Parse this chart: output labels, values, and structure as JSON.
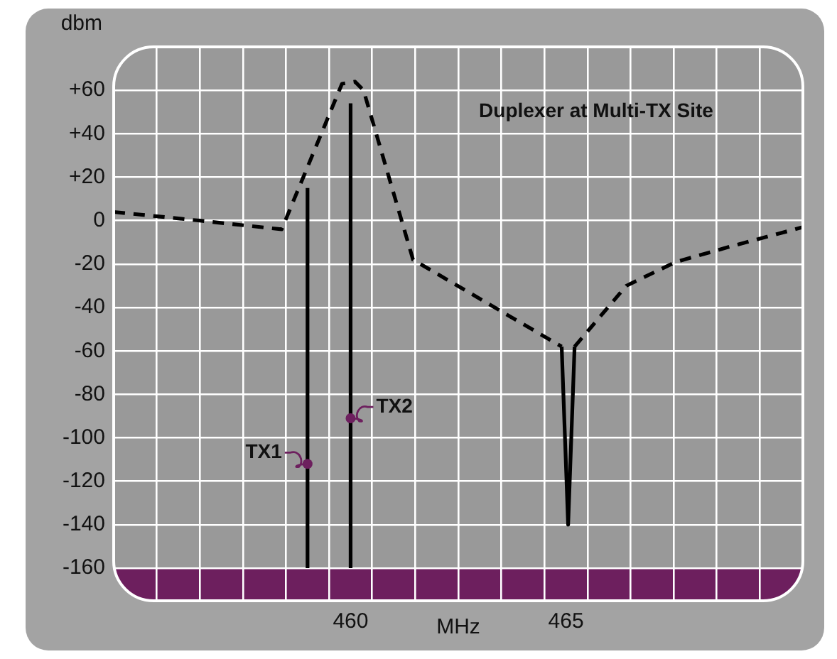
{
  "chart_data": {
    "type": "line",
    "title": "Duplexer at Multi-TX Site",
    "xlabel": "MHz",
    "ylabel": "dbm",
    "xlim": [
      454.5,
      470.5
    ],
    "ylim": [
      -175,
      80
    ],
    "xticks": [
      {
        "value": 455.5,
        "label": null
      },
      {
        "value": 456.5,
        "label": null
      },
      {
        "value": 457.5,
        "label": null
      },
      {
        "value": 458.5,
        "label": null
      },
      {
        "value": 459.5,
        "label": null
      },
      460,
      {
        "value": 460.5,
        "label": null
      },
      {
        "value": 461.5,
        "label": null
      },
      {
        "value": 462.5,
        "label": null
      },
      {
        "value": 463.5,
        "label": null
      },
      {
        "value": 464.5,
        "label": null
      },
      465,
      {
        "value": 465.5,
        "label": null
      },
      {
        "value": 466.5,
        "label": null
      },
      {
        "value": 467.5,
        "label": null
      },
      {
        "value": 468.5,
        "label": null
      },
      {
        "value": 469.5,
        "label": null
      }
    ],
    "yticks": [
      -160,
      -140,
      -120,
      -100,
      -80,
      -60,
      -40,
      -20,
      0,
      {
        "value": 20,
        "label": "+20"
      },
      {
        "value": 40,
        "label": "+40"
      },
      {
        "value": 60,
        "label": "+60"
      }
    ],
    "grid": true,
    "legend": false,
    "marker": "none",
    "series": [
      {
        "color": "#000000",
        "line_style": "dashed",
        "x": [
          454.5,
          456.5,
          458.4,
          459.8,
          460.1,
          460.3,
          461.45,
          464.9
        ],
        "values": [
          4,
          0,
          -4,
          63,
          64,
          60,
          -18,
          -58
        ]
      },
      {
        "color": "#000000",
        "line_style": "dashed",
        "x": [
          465.2,
          466.4,
          467.55,
          468.8,
          470.5
        ],
        "values": [
          -58,
          -30,
          -19,
          -12,
          -3
        ]
      },
      {
        "color": "#000000",
        "line_style": "solid",
        "x": [
          464.9,
          465.05,
          465.2
        ],
        "values": [
          -58,
          -140,
          -58
        ]
      },
      {
        "color": "#000000",
        "line_style": "solid",
        "x": [
          459,
          459
        ],
        "values": [
          -160,
          15
        ]
      },
      {
        "color": "#000000",
        "line_style": "solid",
        "x": [
          460,
          460
        ],
        "values": [
          -160,
          54
        ]
      }
    ],
    "bands": [
      {
        "axis": "y",
        "from": -175,
        "to": -160,
        "color": "#6d1f5e"
      }
    ],
    "annotations": [
      {
        "text": "TX1",
        "x": 459,
        "y": -112
      },
      {
        "text": "TX2",
        "x": 460,
        "y": -91
      }
    ]
  }
}
